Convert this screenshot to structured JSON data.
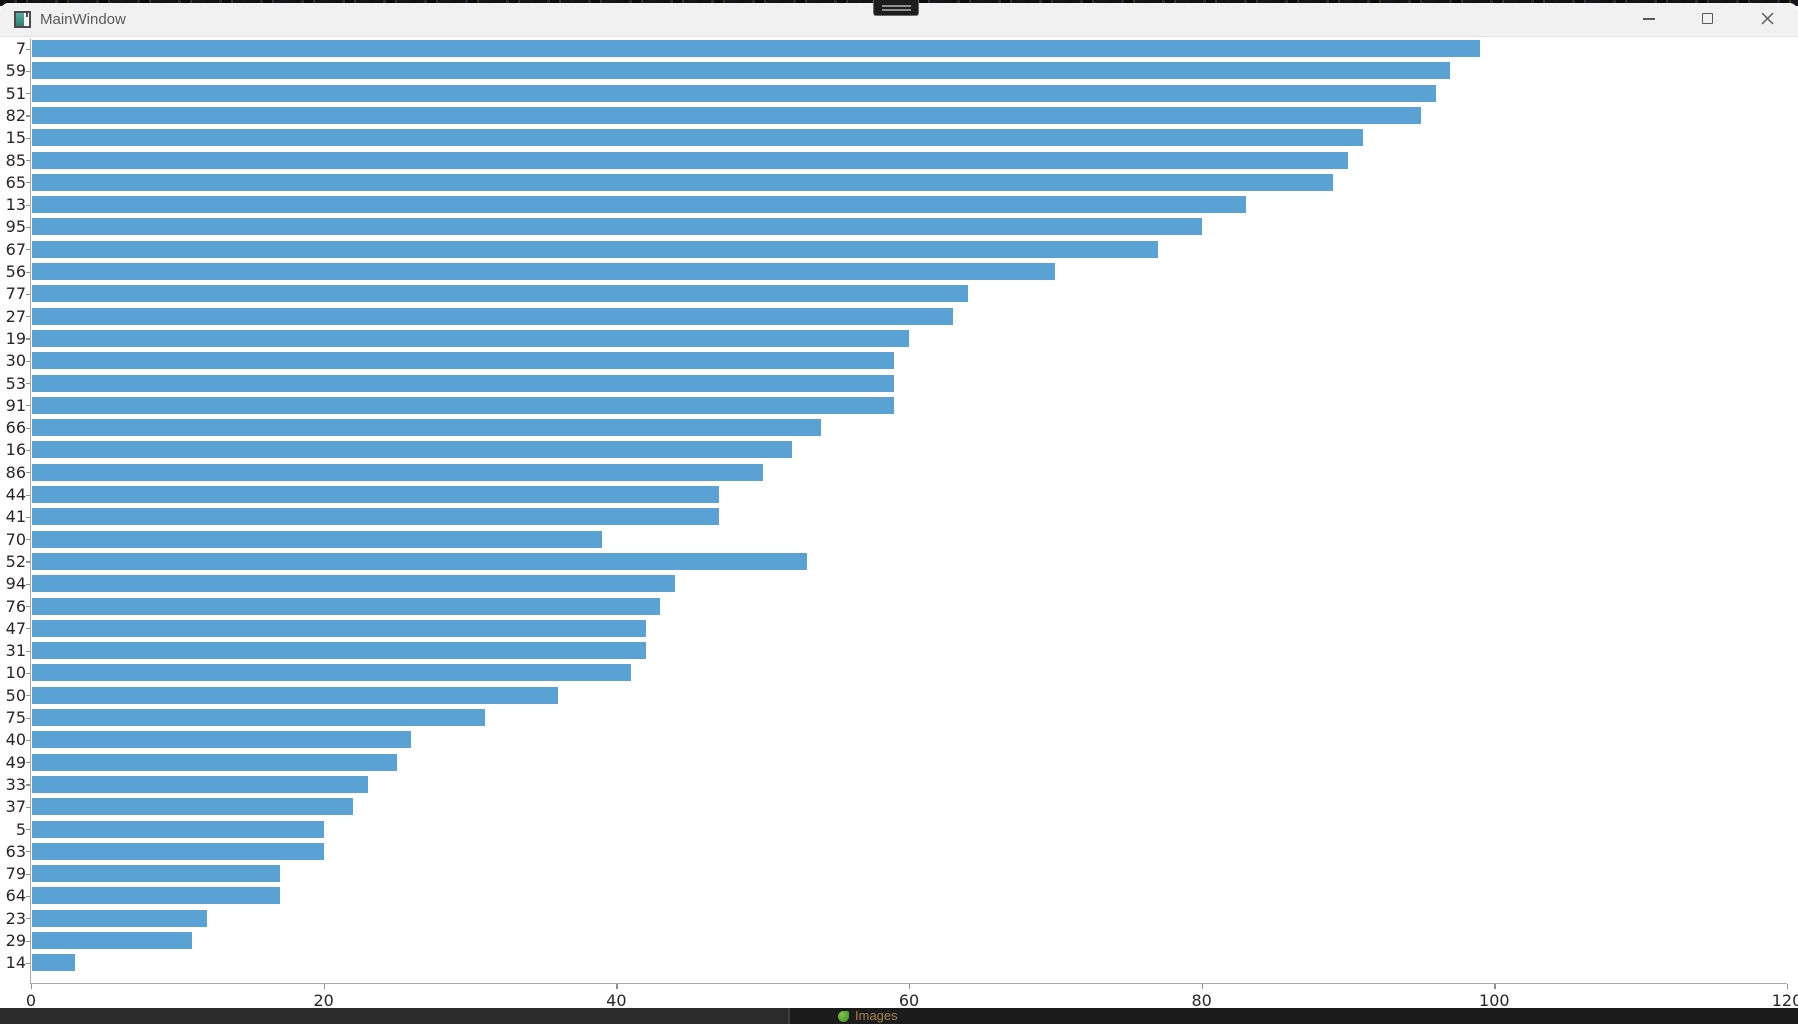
{
  "window": {
    "title": "MainWindow",
    "controls": {
      "minimize": "minimize",
      "maximize": "maximize",
      "close": "close"
    }
  },
  "chart_data": {
    "type": "bar",
    "orientation": "horizontal",
    "title": "",
    "xlabel": "",
    "ylabel": "",
    "xlim": [
      0,
      120
    ],
    "x_ticks": [
      0,
      20,
      40,
      60,
      80,
      100,
      120
    ],
    "grid": false,
    "legend": false,
    "bar_color": "#5aa2d4",
    "categories": [
      "7",
      "59",
      "51",
      "82",
      "15",
      "85",
      "65",
      "13",
      "95",
      "67",
      "56",
      "77",
      "27",
      "19",
      "30",
      "53",
      "91",
      "66",
      "16",
      "86",
      "44",
      "41",
      "70",
      "52",
      "94",
      "76",
      "47",
      "31",
      "10",
      "50",
      "75",
      "40",
      "49",
      "33",
      "37",
      "5",
      "63",
      "79",
      "64",
      "23",
      "29",
      "14"
    ],
    "values": [
      99,
      97,
      96,
      95,
      91,
      90,
      89,
      83,
      80,
      77,
      70,
      64,
      63,
      60,
      59,
      59,
      59,
      54,
      52,
      50,
      47,
      47,
      39,
      53,
      44,
      43,
      42,
      42,
      41,
      36,
      31,
      26,
      25,
      23,
      22,
      20,
      20,
      17,
      17,
      12,
      11,
      3
    ]
  },
  "taskbar": {
    "hint_label": "Images"
  }
}
